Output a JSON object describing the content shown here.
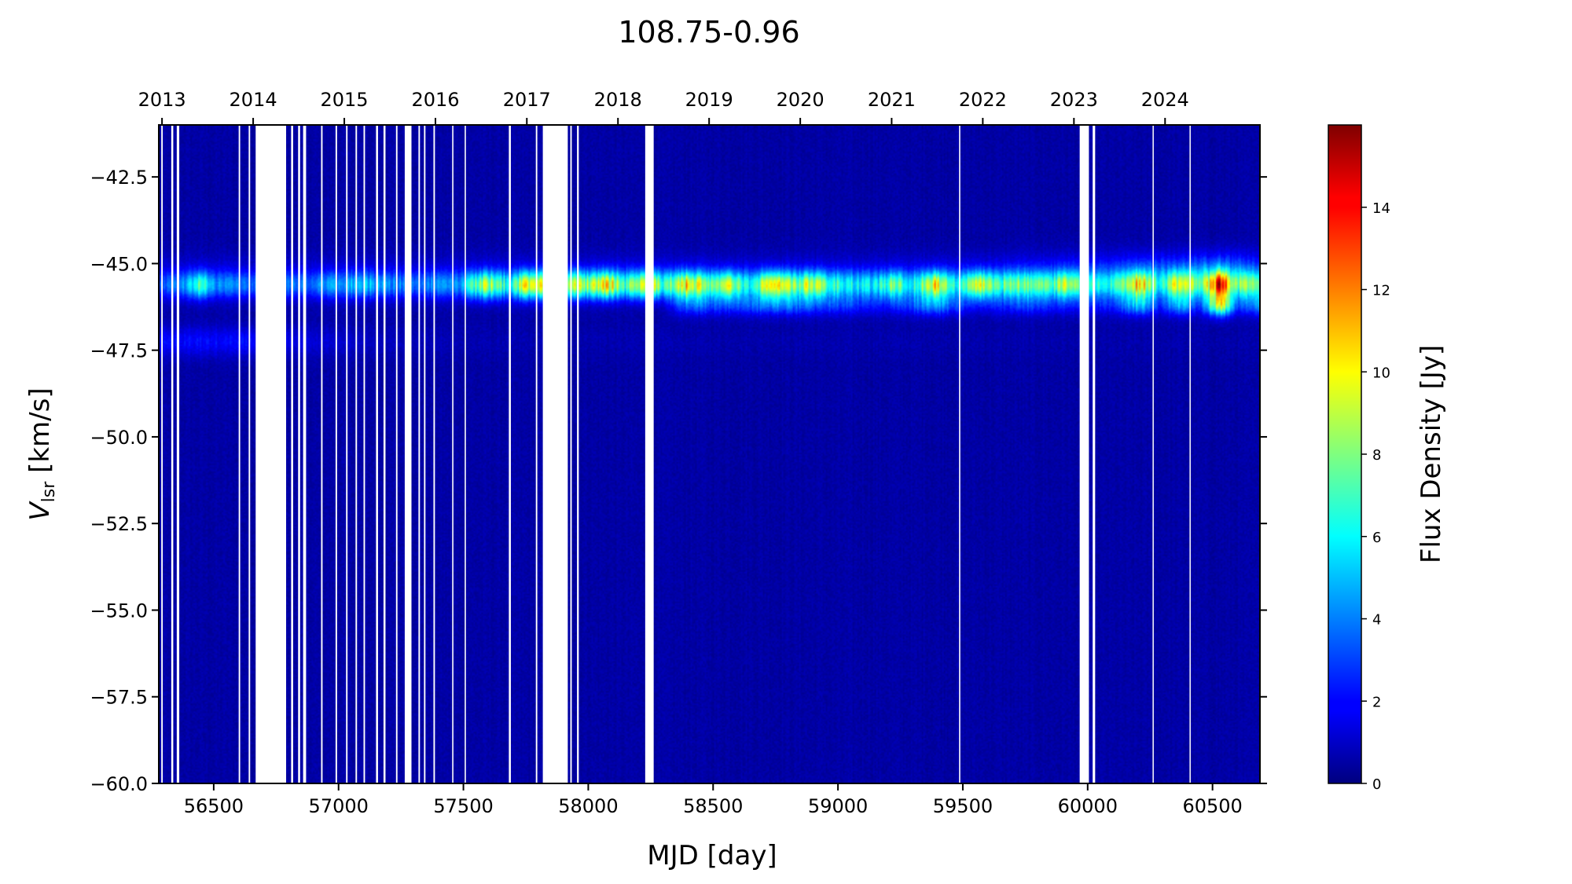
{
  "chart_data": {
    "type": "heatmap",
    "title": "108.75-0.96",
    "xlabel": "MJD [day]",
    "ylabel": {
      "main": "V",
      "sub": "lsr",
      "unit": " [km/s]"
    },
    "colorbar_label": "Flux Density [Jy]",
    "colormap": "jet",
    "xlim": [
      56280,
      60690
    ],
    "ylim": [
      -60.0,
      -41.0
    ],
    "clim": [
      0,
      16
    ],
    "x_ticks": [
      56500,
      57000,
      57500,
      58000,
      58500,
      59000,
      59500,
      60000,
      60500
    ],
    "y_ticks": [
      {
        "value": -42.5,
        "label": "−42.5"
      },
      {
        "value": -45.0,
        "label": "−45.0"
      },
      {
        "value": -47.5,
        "label": "−47.5"
      },
      {
        "value": -50.0,
        "label": "−50.0"
      },
      {
        "value": -52.5,
        "label": "−52.5"
      },
      {
        "value": -55.0,
        "label": "−55.0"
      },
      {
        "value": -57.5,
        "label": "−57.5"
      },
      {
        "value": -60.0,
        "label": "−60.0"
      }
    ],
    "top_axis_years": [
      {
        "label": "2013",
        "mjd": 56293
      },
      {
        "label": "2014",
        "mjd": 56658
      },
      {
        "label": "2015",
        "mjd": 57023
      },
      {
        "label": "2016",
        "mjd": 57388
      },
      {
        "label": "2017",
        "mjd": 57754
      },
      {
        "label": "2018",
        "mjd": 58119
      },
      {
        "label": "2019",
        "mjd": 58484
      },
      {
        "label": "2020",
        "mjd": 58849
      },
      {
        "label": "2021",
        "mjd": 59215
      },
      {
        "label": "2022",
        "mjd": 59580
      },
      {
        "label": "2023",
        "mjd": 59945
      },
      {
        "label": "2024",
        "mjd": 60310
      }
    ],
    "colorbar_ticks": [
      0,
      2,
      4,
      6,
      8,
      10,
      12,
      14
    ],
    "data_gaps_mjd": [
      [
        56290,
        56296
      ],
      [
        56330,
        56338
      ],
      [
        56352,
        56362
      ],
      [
        56600,
        56606
      ],
      [
        56640,
        56646
      ],
      [
        56668,
        56790
      ],
      [
        56810,
        56818
      ],
      [
        56838,
        56846
      ],
      [
        56858,
        56870
      ],
      [
        56930,
        56936
      ],
      [
        56988,
        56994
      ],
      [
        57030,
        57036
      ],
      [
        57068,
        57074
      ],
      [
        57100,
        57106
      ],
      [
        57150,
        57158
      ],
      [
        57180,
        57188
      ],
      [
        57230,
        57236
      ],
      [
        57265,
        57292
      ],
      [
        57320,
        57326
      ],
      [
        57342,
        57348
      ],
      [
        57380,
        57386
      ],
      [
        57455,
        57460
      ],
      [
        57505,
        57510
      ],
      [
        57682,
        57690
      ],
      [
        57790,
        57796
      ],
      [
        57818,
        57918
      ],
      [
        57928,
        57934
      ],
      [
        57955,
        57962
      ],
      [
        58228,
        58262
      ],
      [
        59485,
        59490
      ],
      [
        59968,
        60005
      ],
      [
        60020,
        60030
      ],
      [
        60260,
        60264
      ],
      [
        60408,
        60412
      ]
    ],
    "emission_features": [
      {
        "vlsr": -45.62,
        "width_kms": 0.28,
        "flux_vs_mjd": [
          [
            56280,
            2.6
          ],
          [
            56360,
            3.0
          ],
          [
            56440,
            6.5
          ],
          [
            56520,
            3.3
          ],
          [
            56640,
            3.0
          ],
          [
            56900,
            3.1
          ],
          [
            57090,
            4.6
          ],
          [
            57300,
            3.0
          ],
          [
            57420,
            3.6
          ],
          [
            57480,
            3.7
          ],
          [
            57590,
            8.4
          ],
          [
            57680,
            5.5
          ],
          [
            57760,
            9.4
          ],
          [
            57950,
            8.3
          ],
          [
            58000,
            7.8
          ],
          [
            58075,
            10.0
          ],
          [
            58150,
            6.3
          ],
          [
            58250,
            9.6
          ],
          [
            58300,
            6.0
          ],
          [
            58400,
            10.2
          ],
          [
            58480,
            7.4
          ],
          [
            58560,
            8.4
          ],
          [
            58650,
            5.2
          ],
          [
            58740,
            10.3
          ],
          [
            58820,
            7.0
          ],
          [
            58900,
            8.9
          ],
          [
            58980,
            6.1
          ],
          [
            59060,
            5.4
          ],
          [
            59150,
            5.1
          ],
          [
            59230,
            7.6
          ],
          [
            59300,
            5.1
          ],
          [
            59390,
            9.9
          ],
          [
            59470,
            5.7
          ],
          [
            59560,
            8.4
          ],
          [
            59650,
            6.4
          ],
          [
            59750,
            7.1
          ],
          [
            59850,
            6.3
          ],
          [
            59900,
            7.6
          ],
          [
            60030,
            5.6
          ],
          [
            60100,
            5.5
          ],
          [
            60210,
            9.8
          ],
          [
            60290,
            5.0
          ],
          [
            60370,
            8.9
          ],
          [
            60450,
            5.8
          ],
          [
            60530,
            12.4
          ],
          [
            60600,
            6.0
          ],
          [
            60690,
            7.9
          ]
        ]
      },
      {
        "vlsr": -46.2,
        "width_kms": 0.22,
        "flux_vs_mjd": [
          [
            56280,
            0.0
          ],
          [
            58300,
            0.0
          ],
          [
            58400,
            2.7
          ],
          [
            58560,
            1.9
          ],
          [
            58740,
            2.8
          ],
          [
            58900,
            2.4
          ],
          [
            59200,
            1.2
          ],
          [
            59390,
            3.4
          ],
          [
            59550,
            1.0
          ],
          [
            59760,
            2.0
          ],
          [
            59900,
            1.3
          ],
          [
            60100,
            1.5
          ],
          [
            60210,
            4.2
          ],
          [
            60290,
            1.5
          ],
          [
            60370,
            4.0
          ],
          [
            60450,
            1.5
          ],
          [
            60530,
            9.0
          ],
          [
            60600,
            2.0
          ],
          [
            60690,
            3.3
          ]
        ]
      },
      {
        "vlsr": -47.25,
        "width_kms": 0.3,
        "flux_vs_mjd": [
          [
            56280,
            1.4
          ],
          [
            56450,
            1.6
          ],
          [
            56640,
            1.5
          ],
          [
            56900,
            0.8
          ],
          [
            57200,
            0.4
          ],
          [
            57500,
            0.2
          ],
          [
            60690,
            0.1
          ]
        ]
      },
      {
        "vlsr": -45.15,
        "width_kms": 0.35,
        "flux_vs_mjd": [
          [
            56280,
            0.5
          ],
          [
            58000,
            0.6
          ],
          [
            59500,
            0.7
          ],
          [
            60000,
            1.5
          ],
          [
            60530,
            2.8
          ],
          [
            60690,
            1.8
          ]
        ]
      }
    ]
  }
}
